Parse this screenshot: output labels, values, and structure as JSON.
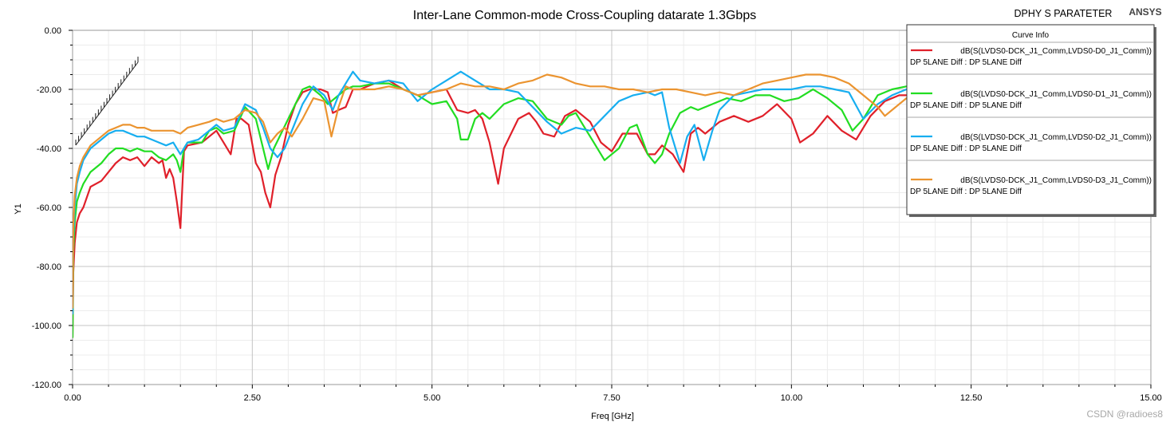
{
  "header": {
    "project": "DPHY S PARATETER",
    "brand": "ANSYS"
  },
  "watermark": "CSDN @radioes8",
  "legend": {
    "title": "Curve Info",
    "entries": [
      {
        "name": "dB(S(LVDS0-DCK_J1_Comm,LVDS0-D0_J1_Comm))",
        "sub": "DP 5LANE Diff : DP 5LANE Diff",
        "color": "#e0202a"
      },
      {
        "name": "dB(S(LVDS0-DCK_J1_Comm,LVDS0-D1_J1_Comm))",
        "sub": "DP 5LANE Diff : DP 5LANE Diff",
        "color": "#22dd22"
      },
      {
        "name": "dB(S(LVDS0-DCK_J1_Comm,LVDS0-D2_J1_Comm))",
        "sub": "DP 5LANE Diff : DP 5LANE Diff",
        "color": "#17aef0"
      },
      {
        "name": "dB(S(LVDS0-DCK_J1_Comm,LVDS0-D3_J1_Comm))",
        "sub": "DP 5LANE Diff : DP 5LANE Diff",
        "color": "#eb9430"
      }
    ]
  },
  "chart_data": {
    "type": "line",
    "title": "Inter-Lane Common-mode Cross-Coupling datarate 1.3Gbps",
    "xlabel": "Freq [GHz]",
    "ylabel": "Y1",
    "xlim": [
      0,
      15
    ],
    "ylim": [
      -120,
      0
    ],
    "xticks": [
      "0.00",
      "2.50",
      "5.00",
      "7.50",
      "10.00",
      "12.50",
      "15.00"
    ],
    "yticks": [
      "0.00",
      "-20.00",
      "-40.00",
      "-60.00",
      "-80.00",
      "-100.00",
      "-120.00"
    ],
    "grid": true,
    "legend_position": "top-right",
    "series": [
      {
        "name": "dB(S(LVDS0-DCK_J1_Comm,LVDS0-D0_J1_Comm))",
        "color": "#e0202a",
        "x": [
          0.0,
          0.01,
          0.03,
          0.06,
          0.1,
          0.15,
          0.25,
          0.4,
          0.5,
          0.6,
          0.7,
          0.8,
          0.9,
          1.0,
          1.1,
          1.2,
          1.25,
          1.3,
          1.35,
          1.4,
          1.45,
          1.5,
          1.55,
          1.6,
          1.8,
          1.9,
          2.0,
          2.1,
          2.2,
          2.28,
          2.35,
          2.45,
          2.55,
          2.62,
          2.68,
          2.75,
          2.82,
          2.9,
          3.0,
          3.1,
          3.2,
          3.3,
          3.45,
          3.55,
          3.62,
          3.7,
          3.8,
          3.9,
          4.0,
          4.2,
          4.4,
          4.6,
          4.8,
          5.0,
          5.2,
          5.35,
          5.5,
          5.6,
          5.7,
          5.8,
          5.92,
          6.0,
          6.2,
          6.35,
          6.45,
          6.55,
          6.7,
          6.85,
          7.0,
          7.2,
          7.35,
          7.5,
          7.65,
          7.85,
          8.0,
          8.1,
          8.2,
          8.35,
          8.5,
          8.6,
          8.7,
          8.8,
          9.0,
          9.2,
          9.4,
          9.6,
          9.8,
          10.0,
          10.12,
          10.3,
          10.5,
          10.7,
          10.9,
          11.1,
          11.3,
          11.5,
          11.6
        ],
        "y": [
          -104,
          -82,
          -72,
          -65,
          -62,
          -60,
          -53,
          -51,
          -48,
          -45,
          -43,
          -44,
          -43,
          -46,
          -43,
          -45,
          -44,
          -50,
          -47,
          -50,
          -58,
          -67,
          -41,
          -39,
          -38,
          -36,
          -34,
          -38,
          -42,
          -30,
          -30,
          -32,
          -45,
          -48,
          -55,
          -60,
          -49,
          -43,
          -32,
          -25,
          -21,
          -20,
          -20,
          -21,
          -28,
          -27,
          -26,
          -20,
          -20,
          -18,
          -17,
          -20,
          -22,
          -21,
          -20,
          -27,
          -28,
          -27,
          -30,
          -38,
          -52,
          -40,
          -30,
          -28,
          -31,
          -35,
          -36,
          -29,
          -27,
          -31,
          -38,
          -41,
          -35,
          -35,
          -42,
          -42,
          -39,
          -42,
          -48,
          -35,
          -33,
          -35,
          -31,
          -29,
          -31,
          -29,
          -25,
          -30,
          -38,
          -35,
          -29,
          -34,
          -37,
          -29,
          -24,
          -22,
          -22
        ]
      },
      {
        "name": "dB(S(LVDS0-DCK_J1_Comm,LVDS0-D1_J1_Comm))",
        "color": "#22dd22",
        "x": [
          0.0,
          0.01,
          0.03,
          0.06,
          0.1,
          0.15,
          0.25,
          0.4,
          0.5,
          0.6,
          0.7,
          0.8,
          0.9,
          1.0,
          1.1,
          1.2,
          1.3,
          1.4,
          1.45,
          1.5,
          1.55,
          1.6,
          1.8,
          1.9,
          2.0,
          2.1,
          2.25,
          2.4,
          2.55,
          2.65,
          2.72,
          2.8,
          2.9,
          3.0,
          3.1,
          3.2,
          3.3,
          3.45,
          3.55,
          3.65,
          3.8,
          3.9,
          4.0,
          4.2,
          4.4,
          4.6,
          4.8,
          5.0,
          5.2,
          5.35,
          5.4,
          5.5,
          5.6,
          5.7,
          5.8,
          6.0,
          6.2,
          6.4,
          6.6,
          6.8,
          6.9,
          7.0,
          7.1,
          7.25,
          7.4,
          7.6,
          7.75,
          7.85,
          8.0,
          8.1,
          8.2,
          8.3,
          8.45,
          8.6,
          8.7,
          8.9,
          9.1,
          9.3,
          9.5,
          9.7,
          9.9,
          10.1,
          10.3,
          10.5,
          10.7,
          10.85,
          11.0,
          11.2,
          11.4,
          11.6
        ],
        "y": [
          -104,
          -75,
          -65,
          -58,
          -55,
          -52,
          -48,
          -45,
          -42,
          -40,
          -40,
          -41,
          -40,
          -41,
          -41,
          -43,
          -44,
          -42,
          -44,
          -48,
          -40,
          -38,
          -38,
          -34,
          -33,
          -35,
          -34,
          -26,
          -30,
          -40,
          -47,
          -40,
          -35,
          -30,
          -25,
          -20,
          -19,
          -22,
          -25,
          -23,
          -20,
          -19,
          -19,
          -18,
          -18,
          -20,
          -22,
          -25,
          -24,
          -30,
          -37,
          -37,
          -30,
          -28,
          -30,
          -25,
          -23,
          -24,
          -30,
          -32,
          -29,
          -28,
          -32,
          -38,
          -44,
          -40,
          -33,
          -32,
          -42,
          -45,
          -42,
          -35,
          -28,
          -26,
          -27,
          -25,
          -23,
          -24,
          -22,
          -22,
          -24,
          -23,
          -20,
          -23,
          -27,
          -34,
          -30,
          -22,
          -20,
          -19
        ]
      },
      {
        "name": "dB(S(LVDS0-DCK_J1_Comm,LVDS0-D2_J1_Comm))",
        "color": "#17aef0",
        "x": [
          0.0,
          0.01,
          0.03,
          0.06,
          0.1,
          0.15,
          0.25,
          0.4,
          0.5,
          0.6,
          0.7,
          0.8,
          0.9,
          1.0,
          1.1,
          1.2,
          1.3,
          1.4,
          1.5,
          1.6,
          1.75,
          1.9,
          2.0,
          2.1,
          2.25,
          2.4,
          2.55,
          2.65,
          2.75,
          2.85,
          2.95,
          3.05,
          3.2,
          3.35,
          3.5,
          3.62,
          3.7,
          3.8,
          3.9,
          4.0,
          4.2,
          4.4,
          4.6,
          4.8,
          5.0,
          5.2,
          5.4,
          5.6,
          5.8,
          6.0,
          6.2,
          6.4,
          6.6,
          6.8,
          7.0,
          7.2,
          7.4,
          7.6,
          7.8,
          8.0,
          8.1,
          8.2,
          8.3,
          8.45,
          8.55,
          8.65,
          8.78,
          8.9,
          9.0,
          9.2,
          9.4,
          9.6,
          9.8,
          10.0,
          10.2,
          10.4,
          10.6,
          10.8,
          11.0,
          11.2,
          11.4,
          11.6
        ],
        "y": [
          -96,
          -70,
          -60,
          -52,
          -48,
          -44,
          -40,
          -37,
          -35,
          -34,
          -34,
          -35,
          -36,
          -36,
          -37,
          -38,
          -39,
          -38,
          -42,
          -38,
          -37,
          -34,
          -32,
          -34,
          -33,
          -25,
          -27,
          -33,
          -40,
          -43,
          -40,
          -34,
          -25,
          -19,
          -22,
          -27,
          -22,
          -18,
          -14,
          -17,
          -18,
          -17,
          -18,
          -24,
          -20,
          -17,
          -14,
          -17,
          -20,
          -20,
          -21,
          -26,
          -31,
          -35,
          -33,
          -34,
          -29,
          -24,
          -22,
          -21,
          -22,
          -21,
          -33,
          -45,
          -36,
          -32,
          -44,
          -34,
          -27,
          -22,
          -21,
          -20,
          -20,
          -20,
          -19,
          -19,
          -20,
          -21,
          -30,
          -25,
          -22,
          -20
        ]
      },
      {
        "name": "dB(S(LVDS0-DCK_J1_Comm,LVDS0-D3_J1_Comm))",
        "color": "#eb9430",
        "x": [
          0.0,
          0.01,
          0.03,
          0.06,
          0.1,
          0.15,
          0.25,
          0.4,
          0.5,
          0.6,
          0.7,
          0.8,
          0.9,
          1.0,
          1.1,
          1.2,
          1.3,
          1.4,
          1.5,
          1.6,
          1.75,
          1.9,
          2.0,
          2.1,
          2.25,
          2.4,
          2.55,
          2.65,
          2.75,
          2.85,
          2.95,
          3.05,
          3.2,
          3.35,
          3.5,
          3.6,
          3.7,
          3.8,
          3.9,
          4.0,
          4.2,
          4.4,
          4.6,
          4.8,
          5.0,
          5.2,
          5.4,
          5.6,
          5.8,
          6.0,
          6.2,
          6.4,
          6.6,
          6.8,
          7.0,
          7.2,
          7.4,
          7.6,
          7.8,
          8.0,
          8.2,
          8.4,
          8.6,
          8.8,
          9.0,
          9.2,
          9.4,
          9.6,
          9.8,
          10.0,
          10.2,
          10.4,
          10.6,
          10.8,
          11.0,
          11.2,
          11.3,
          11.4,
          11.6
        ],
        "y": [
          -94,
          -66,
          -56,
          -50,
          -46,
          -43,
          -39,
          -36,
          -34,
          -33,
          -32,
          -32,
          -33,
          -33,
          -34,
          -34,
          -34,
          -34,
          -35,
          -33,
          -32,
          -31,
          -30,
          -31,
          -30,
          -27,
          -28,
          -31,
          -38,
          -35,
          -33,
          -36,
          -30,
          -23,
          -24,
          -36,
          -26,
          -19,
          -20,
          -20,
          -20,
          -19,
          -20,
          -22,
          -21,
          -20,
          -18,
          -19,
          -19,
          -20,
          -18,
          -17,
          -15,
          -16,
          -18,
          -19,
          -19,
          -20,
          -20,
          -21,
          -20,
          -20,
          -21,
          -22,
          -21,
          -22,
          -20,
          -18,
          -17,
          -16,
          -15,
          -15,
          -16,
          -18,
          -22,
          -26,
          -29,
          -27,
          -23
        ]
      }
    ]
  }
}
